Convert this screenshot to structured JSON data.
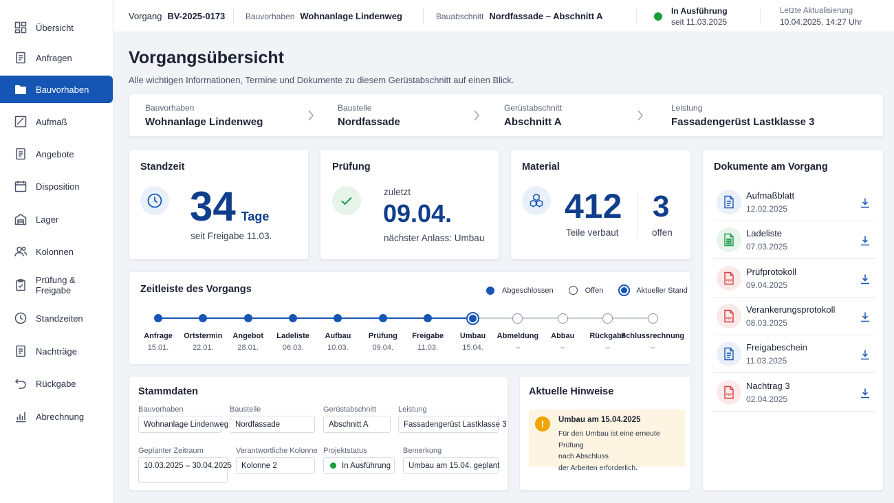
{
  "sidebar": {
    "items": [
      {
        "label": "Übersicht",
        "icon": "dashboard-icon"
      },
      {
        "label": "Anfragen",
        "icon": "document-icon"
      },
      {
        "label": "Bauvorhaben",
        "icon": "folder-icon"
      },
      {
        "label": "Aufmaß",
        "icon": "measure-icon"
      },
      {
        "label": "Angebote",
        "icon": "document-icon"
      },
      {
        "label": "Disposition",
        "icon": "calendar-icon"
      },
      {
        "label": "Lager",
        "icon": "warehouse-icon"
      },
      {
        "label": "Kolonnen",
        "icon": "users-icon"
      },
      {
        "label": "Prüfung & Freigabe",
        "icon": "clipboard-check-icon"
      },
      {
        "label": "Standzeiten",
        "icon": "clock-icon"
      },
      {
        "label": "Nachträge",
        "icon": "document-icon"
      },
      {
        "label": "Rückgabe",
        "icon": "return-icon"
      },
      {
        "label": "Abrechnung",
        "icon": "bar-chart-icon"
      }
    ],
    "active_index": 2
  },
  "topbar": {
    "vorgang_label": "Vorgang",
    "vorgang_value": "BV-2025-0173",
    "bauvorhaben_label": "Bauvorhaben",
    "bauvorhaben_value": "Wohnanlage Lindenweg",
    "bauabschnitt_label": "Bauabschnitt",
    "bauabschnitt_value": "Nordfassade – Abschnitt A",
    "status_label": "In Ausführung",
    "status_since": "seit 11.03.2025",
    "status_color": "#1a9e3a",
    "update_label": "Letzte Aktualisierung",
    "update_value": "10.04.2025, 14:27 Uhr"
  },
  "header": {
    "title": "Vorgangsübersicht",
    "subtitle": "Alle wichtigen Informationen, Termine und Dokumente zu diesem Gerüstabschnitt auf einen Blick."
  },
  "breadcrumb": [
    {
      "label": "Bauvorhaben",
      "value": "Wohnanlage Lindenweg"
    },
    {
      "label": "Baustelle",
      "value": "Nordfassade"
    },
    {
      "label": "Gerüstabschnitt",
      "value": "Abschnitt A"
    },
    {
      "label": "Leistung",
      "value": "Fassadengerüst Lastklasse 3"
    }
  ],
  "standzeit": {
    "title": "Standzeit",
    "value": "34",
    "unit": "Tage",
    "caption": "seit Freigabe 11.03."
  },
  "pruefung": {
    "title": "Prüfung",
    "pre": "zuletzt",
    "date": "09.04.",
    "caption": "nächster Anlass: Umbau"
  },
  "material": {
    "title": "Material",
    "value": "412",
    "caption": "Teile verbaut",
    "open_value": "3",
    "open_caption": "offen"
  },
  "timeline": {
    "title": "Zeitleiste des Vorgangs",
    "legend": {
      "done": "Abgeschlossen",
      "open": "Offen",
      "current": "Aktueller Stand"
    },
    "steps": [
      {
        "label": "Anfrage",
        "date": "15.01.",
        "state": "done"
      },
      {
        "label": "Ortstermin",
        "date": "22.01.",
        "state": "done"
      },
      {
        "label": "Angebot",
        "date": "28.01.",
        "state": "done"
      },
      {
        "label": "Ladeliste",
        "date": "06.03.",
        "state": "done"
      },
      {
        "label": "Aufbau",
        "date": "10.03.",
        "state": "done"
      },
      {
        "label": "Prüfung",
        "date": "09.04.",
        "state": "done"
      },
      {
        "label": "Freigabe",
        "date": "11.03.",
        "state": "done"
      },
      {
        "label": "Umbau",
        "date": "15.04.",
        "state": "current"
      },
      {
        "label": "Abmeldung",
        "date": "–",
        "state": "open"
      },
      {
        "label": "Abbau",
        "date": "–",
        "state": "open"
      },
      {
        "label": "Rückgabe",
        "date": "–",
        "state": "open"
      },
      {
        "label": "Schlussrechnung",
        "date": "–",
        "state": "open"
      }
    ]
  },
  "stammdaten": {
    "title": "Stammdaten",
    "fields": [
      {
        "label": "Bauvorhaben",
        "value": "Wohnanlage Lindenweg"
      },
      {
        "label": "Baustelle",
        "value": "Nordfassade"
      },
      {
        "label": "Gerüstabschnitt",
        "value": "Abschnitt A"
      },
      {
        "label": "Leistung",
        "value": "Fassadengerüst Lastklasse 3"
      },
      {
        "label": "Geplanter Zeitraum",
        "value": "10.03.2025 – 30.04.2025"
      },
      {
        "label": "Verantwortliche Kolonne",
        "value": "Kolonne 2"
      },
      {
        "label": "Projektstatus",
        "value": "In Ausführung"
      },
      {
        "label": "Bemerkung",
        "value": "Umbau am 15.04. geplant"
      }
    ]
  },
  "hinweise": {
    "title": "Aktuelle Hinweise",
    "heading": "Umbau am 15.04.2025",
    "line1": "Für den Umbau ist eine erneute Prüfung",
    "line2": "nach Abschluss",
    "line3": "der Arbeiten erforderlich."
  },
  "documents": {
    "title": "Dokumente am Vorgang",
    "items": [
      {
        "name": "Aufmaßblatt",
        "date": "12.02.2025",
        "kind": "doc"
      },
      {
        "name": "Ladeliste",
        "date": "07.03.2025",
        "kind": "sheet"
      },
      {
        "name": "Prüfprotokoll",
        "date": "09.04.2025",
        "kind": "pdf"
      },
      {
        "name": "Verankerungsprotokoll",
        "date": "08.03.2025",
        "kind": "pdf"
      },
      {
        "name": "Freigabeschein",
        "date": "11.03.2025",
        "kind": "doc"
      },
      {
        "name": "Nachtrag 3",
        "date": "02.04.2025",
        "kind": "pdf"
      }
    ]
  },
  "colors": {
    "accent": "#1556b5",
    "accent_dark": "#0f3f8c",
    "warning": "#f0a500",
    "pdf": "#d63b3b",
    "sheet": "#1e9a4a"
  }
}
